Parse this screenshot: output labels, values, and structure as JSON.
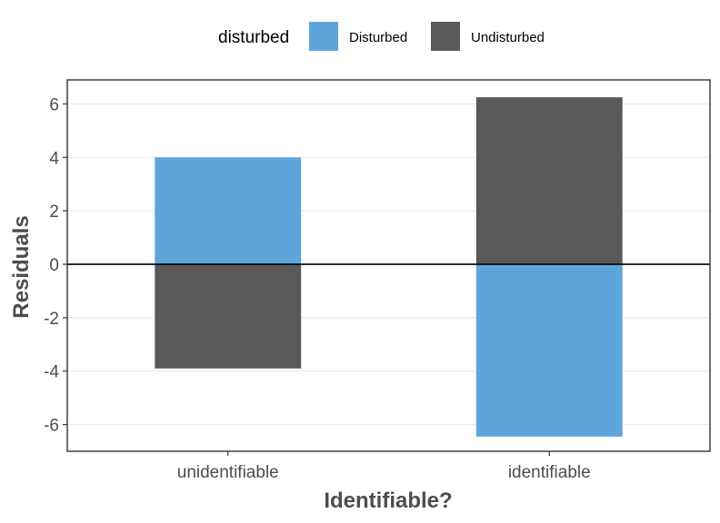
{
  "chart_data": {
    "type": "bar",
    "title": "",
    "xlabel": "Identifiable?",
    "ylabel": "Residuals",
    "categories": [
      "unidentifiable",
      "identifiable"
    ],
    "series": [
      {
        "name": "Disturbed",
        "color": "#5DA5DA",
        "values": [
          4.0,
          -6.45
        ]
      },
      {
        "name": "Undisturbed",
        "color": "#595959",
        "values": [
          -3.9,
          6.25
        ]
      }
    ],
    "ylim": [
      -7.0,
      6.9
    ],
    "yticks": [
      -6,
      -4,
      -2,
      0,
      2,
      4,
      6
    ],
    "grid": true,
    "legend": {
      "title": "disturbed",
      "position": "top"
    }
  }
}
